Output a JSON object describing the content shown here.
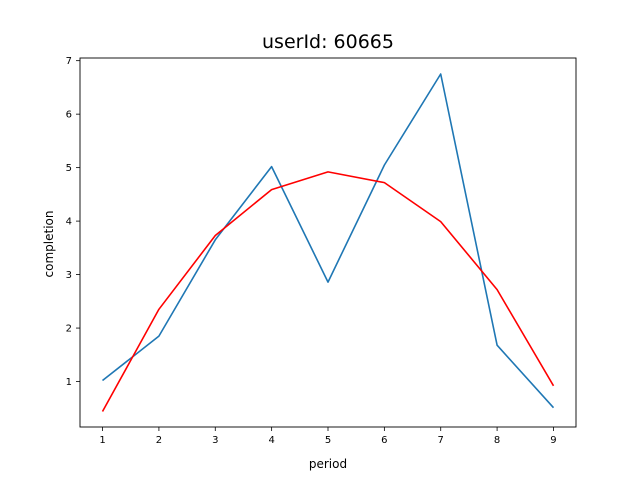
{
  "chart_data": {
    "type": "line",
    "title": "userId: 60665",
    "xlabel": "period",
    "ylabel": "completion",
    "x": [
      1,
      2,
      3,
      4,
      5,
      6,
      7,
      8,
      9
    ],
    "series": [
      {
        "color": "#1f77b4",
        "values": [
          1.02,
          1.85,
          3.65,
          5.02,
          2.86,
          5.05,
          6.75,
          1.68,
          0.51
        ]
      },
      {
        "color": "#ff0000",
        "values": [
          0.44,
          2.35,
          3.73,
          4.59,
          4.92,
          4.72,
          3.99,
          2.72,
          0.92
        ]
      }
    ],
    "xlim": [
      0.6,
      9.4
    ],
    "ylim": [
      0.15,
      7.05
    ],
    "xticks": [
      "1",
      "2",
      "3",
      "4",
      "5",
      "6",
      "7",
      "8",
      "9"
    ],
    "yticks": [
      "1",
      "2",
      "3",
      "4",
      "5",
      "6",
      "7"
    ],
    "grid": false,
    "legend": "none"
  }
}
